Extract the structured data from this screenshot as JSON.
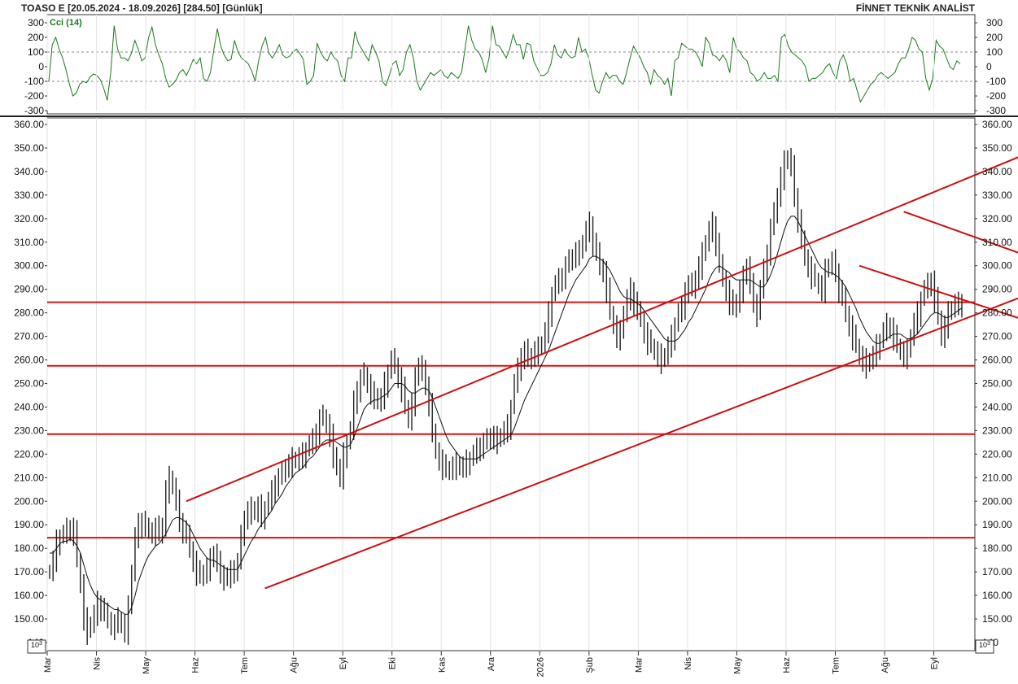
{
  "header": {
    "left": "TOASO E  [20.05.2024 - 18.09.2026]  [284.50]  [Günlük]",
    "right": "FİNNET TEKNİK ANALİST"
  },
  "chart_data": [
    {
      "type": "line",
      "title": "Cci (14)",
      "ylim": [
        -300,
        300
      ],
      "yticks": [
        "300",
        "200",
        "100",
        "0",
        "-100",
        "-200",
        "-300"
      ],
      "reference_lines": [
        100,
        -100
      ],
      "series": [
        {
          "name": "Cci (14)",
          "color": "#1a7a1a",
          "values": [
            -100,
            150,
            200,
            120,
            60,
            -20,
            -120,
            -200,
            -180,
            -120,
            -100,
            -110,
            -70,
            -50,
            -60,
            -90,
            -150,
            -230,
            -40,
            280,
            120,
            60,
            60,
            40,
            90,
            180,
            120,
            40,
            60,
            200,
            270,
            150,
            80,
            20,
            -80,
            -140,
            -120,
            -90,
            -40,
            -20,
            -60,
            -10,
            50,
            20,
            60,
            -80,
            -100,
            -40,
            120,
            260,
            140,
            80,
            40,
            50,
            180,
            100,
            60,
            40,
            20,
            -30,
            -100,
            40,
            140,
            200,
            90,
            60,
            100,
            150,
            80,
            60,
            70,
            100,
            120,
            90,
            50,
            -120,
            -100,
            -60,
            160,
            100,
            60,
            40,
            100,
            60,
            40,
            -60,
            -100,
            60,
            60,
            240,
            160,
            120,
            80,
            40,
            150,
            100,
            40,
            -100,
            -130,
            -60,
            20,
            40,
            -60,
            -20,
            100,
            150,
            60,
            -100,
            -160,
            -120,
            -80,
            -40,
            -60,
            -40,
            -20,
            -60,
            -80,
            -40,
            -60,
            -80,
            -40,
            120,
            280,
            180,
            120,
            100,
            50,
            -40,
            60,
            280,
            150,
            140,
            100,
            60,
            120,
            220,
            150,
            150,
            50,
            160,
            150,
            40,
            -10,
            -60,
            -60,
            -40,
            20,
            150,
            80,
            60,
            120,
            80,
            60,
            70,
            200,
            100,
            120,
            60,
            -60,
            -160,
            -180,
            -100,
            -40,
            -80,
            -60,
            -60,
            -100,
            -120,
            -40,
            60,
            140,
            100,
            60,
            0,
            -40,
            -120,
            -20,
            -60,
            -80,
            -120,
            -80,
            -200,
            40,
            60,
            160,
            140,
            120,
            120,
            100,
            60,
            0,
            200,
            160,
            80,
            70,
            40,
            80,
            40,
            -40,
            200,
            120,
            100,
            60,
            40,
            -40,
            -60,
            -100,
            -80,
            -40,
            -80,
            -80,
            -60,
            -100,
            200,
            220,
            140,
            100,
            80,
            60,
            40,
            0,
            -100,
            -80,
            -80,
            -60,
            -40,
            0,
            20,
            -40,
            -80,
            40,
            80,
            20,
            -100,
            -80,
            -160,
            -240,
            -200,
            -160,
            -120,
            -100,
            -60,
            -40,
            -60,
            -80,
            -60,
            -40,
            20,
            60,
            60,
            120,
            200,
            180,
            120,
            100,
            -80,
            -160,
            -80,
            180,
            140,
            120,
            60,
            0,
            -20,
            40,
            20
          ]
        }
      ]
    },
    {
      "type": "line",
      "ylim": [
        140,
        360
      ],
      "yticks": [
        "360.00",
        "350.00",
        "340.00",
        "330.00",
        "320.00",
        "310.00",
        "300.00",
        "290.00",
        "280.00",
        "270.00",
        "260.00",
        "250.00",
        "240.00",
        "230.00",
        "220.00",
        "210.00",
        "200.00",
        "190.00",
        "180.00",
        "170.00",
        "160.00",
        "150.00",
        "140"
      ],
      "scale_label": "10^3",
      "x_tick_labels": [
        "Mar",
        "Nis",
        "May",
        "Haz",
        "Tem",
        "Ağu",
        "Eyl",
        "Eki",
        "Kas",
        "Ara",
        "2026",
        "Şub",
        "Mar",
        "Nis",
        "May",
        "Haz",
        "Tem",
        "Ağu",
        "Eyl"
      ],
      "horizontal_levels": [
        284.5,
        257.5,
        228.5,
        184.5
      ],
      "trendlines": [
        {
          "start": [
            40,
            200
          ],
          "end": [
            315,
            365
          ]
        },
        {
          "start": [
            63,
            163
          ],
          "end": [
            344,
            320
          ]
        },
        {
          "start": [
            250,
            323
          ],
          "end": [
            344,
            274
          ]
        },
        {
          "start": [
            237,
            300
          ],
          "end": [
            344,
            249
          ]
        }
      ],
      "series": [
        {
          "name": "price",
          "color": "#222222",
          "values": [
            170,
            175,
            183,
            185,
            186,
            188,
            189,
            187,
            175,
            165,
            150,
            145,
            148,
            152,
            157,
            155,
            152,
            150,
            148,
            147,
            150,
            148,
            145,
            155,
            170,
            185,
            190,
            192,
            188,
            188,
            187,
            189,
            186,
            190,
            205,
            210,
            206,
            200,
            192,
            188,
            185,
            180,
            175,
            170,
            168,
            170,
            172,
            175,
            178,
            174,
            170,
            168,
            167,
            170,
            172,
            174,
            185,
            193,
            196,
            197,
            195,
            198,
            194,
            197,
            200,
            204,
            208,
            210,
            212,
            215,
            216,
            218,
            217,
            219,
            220,
            222,
            224,
            226,
            230,
            235,
            236,
            233,
            228,
            220,
            214,
            210,
            220,
            225,
            230,
            242,
            248,
            252,
            254,
            250,
            246,
            245,
            242,
            244,
            250,
            255,
            260,
            258,
            253,
            248,
            240,
            235,
            242,
            252,
            258,
            255,
            250,
            242,
            228,
            222,
            218,
            215,
            213,
            214,
            215,
            216,
            214,
            215,
            217,
            218,
            220,
            222,
            224,
            225,
            226,
            228,
            227,
            226,
            228,
            230,
            232,
            240,
            250,
            256,
            262,
            264,
            260,
            262,
            264,
            265,
            267,
            272,
            280,
            288,
            292,
            294,
            296,
            300,
            302,
            304,
            306,
            306,
            310,
            315,
            318,
            310,
            305,
            300,
            298,
            290,
            280,
            275,
            270,
            272,
            280,
            286,
            290,
            285,
            280,
            278,
            272,
            268,
            266,
            264,
            262,
            260,
            262,
            266,
            270,
            275,
            280,
            282,
            290,
            292,
            290,
            295,
            300,
            305,
            310,
            315,
            318,
            310,
            300,
            295,
            290,
            285,
            282,
            285,
            290,
            295,
            300,
            292,
            285,
            280,
            290,
            298,
            306,
            316,
            322,
            330,
            338,
            344,
            346,
            342,
            330,
            320,
            310,
            304,
            300,
            296,
            294,
            292,
            290,
            298,
            300,
            302,
            298,
            290,
            286,
            280,
            275,
            270,
            266,
            262,
            260,
            258,
            260,
            262,
            266,
            268,
            272,
            275,
            274,
            270,
            266,
            264,
            262,
            264,
            270,
            276,
            280,
            286,
            290,
            292,
            294,
            286,
            278,
            270,
            275,
            280,
            282,
            284,
            284,
            285
          ]
        },
        {
          "name": "moving-average",
          "color": "#111111",
          "values": [
            178,
            178,
            180,
            182,
            183,
            183,
            184,
            183,
            181,
            178,
            173,
            168,
            164,
            161,
            159,
            158,
            157,
            156,
            155,
            154,
            154,
            153,
            152,
            152,
            155,
            160,
            166,
            170,
            174,
            177,
            179,
            181,
            182,
            184,
            186,
            189,
            192,
            193,
            193,
            192,
            191,
            189,
            186,
            183,
            180,
            178,
            176,
            175,
            175,
            174,
            173,
            172,
            171,
            171,
            171,
            171,
            174,
            177,
            180,
            183,
            185,
            188,
            190,
            192,
            194,
            196,
            199,
            201,
            203,
            206,
            208,
            210,
            212,
            213,
            214,
            216,
            218,
            219,
            221,
            223,
            225,
            226,
            226,
            226,
            225,
            224,
            223,
            223,
            224,
            227,
            231,
            235,
            239,
            241,
            242,
            243,
            243,
            244,
            245,
            246,
            248,
            250,
            250,
            250,
            249,
            247,
            246,
            246,
            247,
            248,
            248,
            247,
            244,
            240,
            236,
            232,
            228,
            225,
            223,
            221,
            219,
            218,
            218,
            218,
            218,
            218,
            219,
            220,
            221,
            222,
            223,
            224,
            225,
            226,
            227,
            228,
            231,
            235,
            239,
            243,
            246,
            249,
            252,
            255,
            258,
            261,
            264,
            268,
            272,
            276,
            280,
            284,
            288,
            291,
            294,
            296,
            298,
            300,
            303,
            304,
            304,
            303,
            302,
            300,
            298,
            295,
            292,
            289,
            287,
            286,
            286,
            285,
            284,
            283,
            281,
            279,
            277,
            275,
            273,
            271,
            269,
            268,
            268,
            268,
            269,
            271,
            273,
            276,
            278,
            281,
            284,
            287,
            290,
            294,
            297,
            299,
            300,
            299,
            298,
            297,
            295,
            294,
            294,
            294,
            294,
            294,
            293,
            292,
            291,
            291,
            293,
            296,
            300,
            305,
            310,
            315,
            319,
            321,
            321,
            319,
            316,
            313,
            310,
            307,
            304,
            301,
            299,
            298,
            297,
            297,
            296,
            295,
            293,
            291,
            288,
            285,
            282,
            278,
            275,
            272,
            270,
            268,
            267,
            267,
            268,
            269,
            270,
            271,
            271,
            271,
            270,
            269,
            269,
            270,
            271,
            273,
            275,
            277,
            279,
            280,
            280,
            279,
            278,
            278,
            279,
            280,
            281,
            282
          ]
        }
      ]
    }
  ]
}
